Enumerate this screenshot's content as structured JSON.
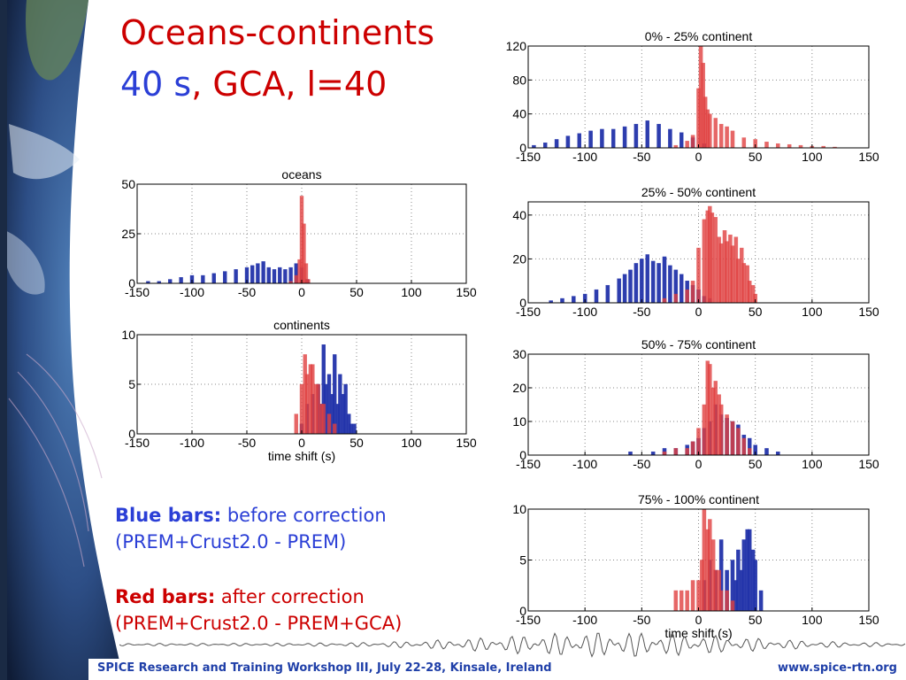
{
  "slide": {
    "title": "Oceans-continents",
    "subtitle_part1": "40 s",
    "subtitle_part2": ", GCA, l=40",
    "legend_blue_label": "Blue bars:",
    "legend_blue_text": " before correction",
    "legend_blue_sub": "(PREM+Crust2.0 - PREM)",
    "legend_red_label": "Red bars:",
    "legend_red_text": " after correction",
    "legend_red_sub": "(PREM+Crust2.0 - PREM+GCA)",
    "footer_left": "SPICE Research and Training Workshop III, July 22-28, Kinsale, Ireland",
    "footer_right": "www.spice-rtn.org"
  },
  "colors": {
    "blue_bar": "#2233aa",
    "red_bar": "#e04040",
    "title_red": "#cc0000",
    "title_blue": "#2b3fd6",
    "footer": "#1f3fa8"
  },
  "chart_data": [
    {
      "id": "oceans",
      "type": "bar",
      "title": "oceans",
      "xlabel": "",
      "xlim": [
        -150,
        150
      ],
      "ylim": [
        0,
        50
      ],
      "yticks": [
        0,
        25,
        50
      ],
      "xticks": [
        -150,
        -100,
        -50,
        0,
        50,
        100,
        150
      ],
      "grid": true,
      "series": [
        {
          "color": "blue",
          "x": [
            -140,
            -130,
            -120,
            -110,
            -100,
            -90,
            -80,
            -70,
            -60,
            -50,
            -45,
            -40,
            -35,
            -30,
            -25,
            -20,
            -15,
            -10,
            -5,
            0,
            5
          ],
          "values": [
            1,
            1,
            2,
            3,
            4,
            4,
            5,
            6,
            7,
            8,
            9,
            10,
            11,
            8,
            7,
            8,
            7,
            8,
            10,
            8,
            2
          ]
        },
        {
          "color": "red",
          "x": [
            -10,
            -5,
            -2,
            0,
            2,
            4,
            6
          ],
          "values": [
            1,
            4,
            12,
            44,
            30,
            10,
            2
          ]
        }
      ]
    },
    {
      "id": "continents",
      "type": "bar",
      "title": "continents",
      "xlabel": "time shift (s)",
      "xlim": [
        -150,
        150
      ],
      "ylim": [
        0,
        10
      ],
      "yticks": [
        0,
        5,
        10
      ],
      "xticks": [
        -150,
        -100,
        -50,
        0,
        50,
        100,
        150
      ],
      "grid": true,
      "series": [
        {
          "color": "blue",
          "x": [
            0,
            5,
            10,
            15,
            18,
            20,
            22,
            25,
            28,
            30,
            33,
            35,
            38,
            40,
            43,
            45,
            48
          ],
          "values": [
            1,
            3,
            4,
            5,
            3,
            9,
            5,
            6,
            4,
            8,
            3,
            6,
            4,
            5,
            2,
            1,
            1
          ]
        },
        {
          "color": "red",
          "x": [
            -5,
            0,
            3,
            5,
            8,
            10,
            13,
            15,
            18,
            20,
            25,
            30
          ],
          "values": [
            2,
            5,
            8,
            6,
            7,
            7,
            5,
            5,
            3,
            3,
            2,
            1
          ]
        }
      ]
    },
    {
      "id": "c0-25",
      "type": "bar",
      "title": "0% - 25% continent",
      "xlabel": "",
      "xlim": [
        -150,
        150
      ],
      "ylim": [
        0,
        120
      ],
      "yticks": [
        0,
        40,
        80,
        120
      ],
      "xticks": [
        -150,
        -100,
        -50,
        0,
        50,
        100,
        150
      ],
      "grid": true,
      "series": [
        {
          "color": "blue",
          "x": [
            -145,
            -135,
            -125,
            -115,
            -105,
            -95,
            -85,
            -75,
            -65,
            -55,
            -45,
            -35,
            -25,
            -15,
            -5,
            5
          ],
          "values": [
            3,
            6,
            10,
            14,
            17,
            20,
            22,
            22,
            25,
            28,
            32,
            28,
            22,
            18,
            12,
            5
          ]
        },
        {
          "color": "red",
          "x": [
            -20,
            -10,
            -5,
            0,
            2,
            4,
            6,
            8,
            10,
            15,
            20,
            25,
            30,
            40,
            50,
            60,
            70,
            80,
            90,
            100,
            110,
            120
          ],
          "values": [
            3,
            8,
            15,
            70,
            120,
            100,
            60,
            45,
            40,
            35,
            28,
            25,
            20,
            12,
            10,
            7,
            5,
            4,
            3,
            2,
            2,
            1
          ]
        }
      ]
    },
    {
      "id": "c25-50",
      "type": "bar",
      "title": "25% - 50% continent",
      "xlabel": "",
      "xlim": [
        -150,
        150
      ],
      "ylim": [
        0,
        46
      ],
      "yticks": [
        0,
        20,
        40
      ],
      "xticks": [
        -150,
        -100,
        -50,
        0,
        50,
        100,
        150
      ],
      "grid": true,
      "series": [
        {
          "color": "blue",
          "x": [
            -130,
            -120,
            -110,
            -100,
            -90,
            -80,
            -70,
            -65,
            -60,
            -55,
            -50,
            -45,
            -40,
            -35,
            -30,
            -25,
            -20,
            -15,
            -10,
            -5,
            0,
            5,
            10
          ],
          "values": [
            1,
            2,
            3,
            4,
            6,
            8,
            11,
            13,
            15,
            18,
            20,
            22,
            19,
            18,
            21,
            17,
            15,
            13,
            10,
            8,
            6,
            3,
            2
          ]
        },
        {
          "color": "red",
          "x": [
            -30,
            -20,
            -10,
            -5,
            0,
            5,
            8,
            10,
            12,
            15,
            18,
            20,
            23,
            25,
            28,
            30,
            33,
            35,
            38,
            40,
            43,
            45,
            48,
            50
          ],
          "values": [
            2,
            4,
            6,
            10,
            25,
            38,
            42,
            44,
            41,
            39,
            30,
            27,
            33,
            28,
            31,
            26,
            30,
            20,
            25,
            18,
            17,
            10,
            8,
            4
          ]
        }
      ]
    },
    {
      "id": "c50-75",
      "type": "bar",
      "title": "50% - 75% continent",
      "xlabel": "",
      "xlim": [
        -150,
        150
      ],
      "ylim": [
        0,
        30
      ],
      "yticks": [
        0,
        10,
        20,
        30
      ],
      "xticks": [
        -150,
        -100,
        -50,
        0,
        50,
        100,
        150
      ],
      "grid": true,
      "series": [
        {
          "color": "blue",
          "x": [
            -60,
            -40,
            -30,
            -20,
            -10,
            -5,
            0,
            5,
            10,
            15,
            20,
            25,
            30,
            35,
            40,
            45,
            50,
            60,
            70
          ],
          "values": [
            1,
            1,
            2,
            2,
            3,
            4,
            5,
            8,
            10,
            15,
            12,
            11,
            10,
            9,
            6,
            5,
            3,
            2,
            1
          ]
        },
        {
          "color": "red",
          "x": [
            -30,
            -20,
            -10,
            -5,
            0,
            5,
            8,
            10,
            13,
            15,
            18,
            20,
            25,
            30,
            35,
            40,
            45
          ],
          "values": [
            1,
            2,
            2,
            4,
            8,
            15,
            28,
            27,
            20,
            22,
            18,
            15,
            12,
            10,
            8,
            5,
            2
          ]
        }
      ]
    },
    {
      "id": "c75-100",
      "type": "bar",
      "title": "75% - 100% continent",
      "xlabel": "time shift (s)",
      "xlim": [
        -150,
        150
      ],
      "ylim": [
        0,
        10
      ],
      "yticks": [
        0,
        5,
        10
      ],
      "xticks": [
        -150,
        -100,
        -50,
        0,
        50,
        100,
        150
      ],
      "grid": true,
      "series": [
        {
          "color": "blue",
          "x": [
            5,
            10,
            15,
            20,
            25,
            30,
            33,
            35,
            38,
            40,
            43,
            45,
            48,
            50,
            55
          ],
          "values": [
            3,
            5,
            4,
            7,
            4,
            5,
            3,
            6,
            4,
            7,
            8,
            8,
            6,
            5,
            2
          ]
        },
        {
          "color": "red",
          "x": [
            -20,
            -15,
            -10,
            -5,
            0,
            3,
            5,
            8,
            10,
            13,
            15,
            18,
            20,
            25,
            30
          ],
          "values": [
            2,
            2,
            2,
            3,
            3,
            5,
            10,
            8,
            9,
            7,
            4,
            4,
            2,
            2,
            1
          ]
        }
      ]
    }
  ]
}
